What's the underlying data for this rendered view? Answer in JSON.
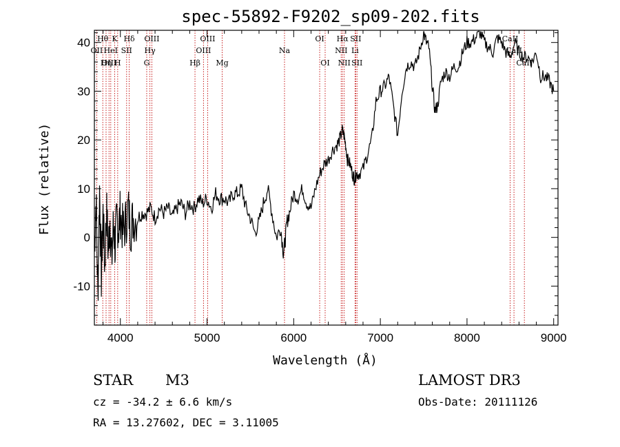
{
  "chart_data": {
    "type": "line",
    "title": "spec-55892-F9202_sp09-202.fits",
    "xlabel": "Wavelength (Å)",
    "ylabel": "Flux (relative)",
    "xlim": [
      3700,
      9050
    ],
    "ylim": [
      -18,
      42.5
    ],
    "xticks": [
      4000,
      5000,
      6000,
      7000,
      8000,
      9000
    ],
    "yticks": [
      -10,
      0,
      10,
      20,
      30,
      40
    ],
    "series": [
      {
        "name": "flux",
        "x": [
          3700,
          3720,
          3740,
          3760,
          3780,
          3800,
          3820,
          3840,
          3860,
          3880,
          3900,
          3920,
          3940,
          3960,
          3980,
          4000,
          4030,
          4060,
          4090,
          4120,
          4150,
          4200,
          4250,
          4300,
          4350,
          4400,
          4450,
          4500,
          4550,
          4600,
          4650,
          4700,
          4750,
          4800,
          4850,
          4900,
          4950,
          5000,
          5050,
          5100,
          5150,
          5200,
          5250,
          5300,
          5350,
          5400,
          5450,
          5500,
          5550,
          5600,
          5650,
          5700,
          5750,
          5800,
          5850,
          5880,
          5900,
          5920,
          5950,
          6000,
          6050,
          6100,
          6150,
          6200,
          6250,
          6300,
          6350,
          6400,
          6450,
          6500,
          6530,
          6560,
          6580,
          6600,
          6620,
          6650,
          6680,
          6700,
          6720,
          6750,
          6800,
          6850,
          6900,
          6950,
          7000,
          7050,
          7100,
          7150,
          7200,
          7250,
          7300,
          7350,
          7400,
          7450,
          7500,
          7530,
          7560,
          7600,
          7630,
          7660,
          7700,
          7750,
          7800,
          7850,
          7900,
          7950,
          8000,
          8050,
          8100,
          8150,
          8200,
          8250,
          8300,
          8350,
          8400,
          8450,
          8500,
          8550,
          8600,
          8650,
          8700,
          8750,
          8800,
          8850,
          8900,
          8950,
          9000
        ],
        "y": [
          -2,
          8,
          -12,
          10,
          -8,
          5,
          -6,
          6,
          -3,
          4,
          -5,
          3,
          -2,
          4,
          2,
          5,
          1,
          3,
          6,
          2,
          4,
          4,
          5,
          5,
          6,
          4,
          6,
          5,
          6,
          4,
          6,
          7,
          5,
          7,
          6,
          8,
          7,
          8,
          6,
          9,
          8,
          8,
          7,
          9,
          9,
          10,
          6,
          4,
          1,
          3,
          7,
          10,
          5,
          0,
          2,
          -3,
          -1,
          3,
          5,
          9,
          8,
          10,
          7,
          6,
          10,
          13,
          15,
          16,
          18,
          19,
          20,
          22,
          21,
          19,
          16,
          15,
          13,
          12,
          13,
          13,
          14,
          17,
          20,
          28,
          30,
          31,
          33,
          27,
          21,
          30,
          35,
          36,
          35,
          38,
          42,
          40,
          39,
          31,
          26,
          27,
          32,
          34,
          33,
          35,
          35,
          38,
          40,
          40,
          41,
          42,
          40,
          39,
          38,
          41,
          40,
          38,
          37,
          40,
          38,
          37,
          37,
          36,
          38,
          33,
          33,
          32,
          30
        ]
      }
    ],
    "lines": [
      {
        "label": "OII",
        "x": 3727,
        "row": 1
      },
      {
        "label": "Hθ",
        "x": 3797,
        "row": 0
      },
      {
        "label": "OIII",
        "x": 3869,
        "row": 2
      },
      {
        "label": "K",
        "x": 3934,
        "row": 0
      },
      {
        "label": "HeI",
        "x": 3889,
        "row": 1
      },
      {
        "label": "H",
        "x": 3969,
        "row": 2
      },
      {
        "label": "Hη",
        "x": 3835,
        "row": 2
      },
      {
        "label": "SII",
        "x": 4072,
        "row": 1
      },
      {
        "label": "Hδ",
        "x": 4102,
        "row": 0
      },
      {
        "label": "OIII",
        "x": 4363,
        "row": 0
      },
      {
        "label": "Hγ",
        "x": 4341,
        "row": 1
      },
      {
        "label": "G",
        "x": 4304,
        "row": 2
      },
      {
        "label": "Hβ",
        "x": 4861,
        "row": 2
      },
      {
        "label": "OIII",
        "x": 5007,
        "row": 0
      },
      {
        "label": "OIII",
        "x": 4959,
        "row": 1
      },
      {
        "label": "Mg",
        "x": 5175,
        "row": 2
      },
      {
        "label": "Na",
        "x": 5894,
        "row": 1
      },
      {
        "label": "OI",
        "x": 6300,
        "row": 0
      },
      {
        "label": "OI",
        "x": 6363,
        "row": 2
      },
      {
        "label": "Hα",
        "x": 6563,
        "row": 0
      },
      {
        "label": "SII",
        "x": 6716,
        "row": 0
      },
      {
        "label": "NII",
        "x": 6548,
        "row": 1
      },
      {
        "label": "Li",
        "x": 6708,
        "row": 1
      },
      {
        "label": "NII",
        "x": 6583,
        "row": 2
      },
      {
        "label": "SII",
        "x": 6731,
        "row": 2
      },
      {
        "label": "CaII",
        "x": 8498,
        "row": 0
      },
      {
        "label": "CaII",
        "x": 8542,
        "row": 1
      },
      {
        "label": "CaII",
        "x": 8662,
        "row": 2
      }
    ]
  },
  "footer": {
    "class_label": "STAR",
    "subclass": "M3",
    "survey": "LAMOST DR3",
    "cz": "cz = -34.2 ± 6.6 km/s",
    "obs_date": "Obs-Date: 20111126",
    "coords": "RA =  13.27602, DEC =   3.11005"
  }
}
